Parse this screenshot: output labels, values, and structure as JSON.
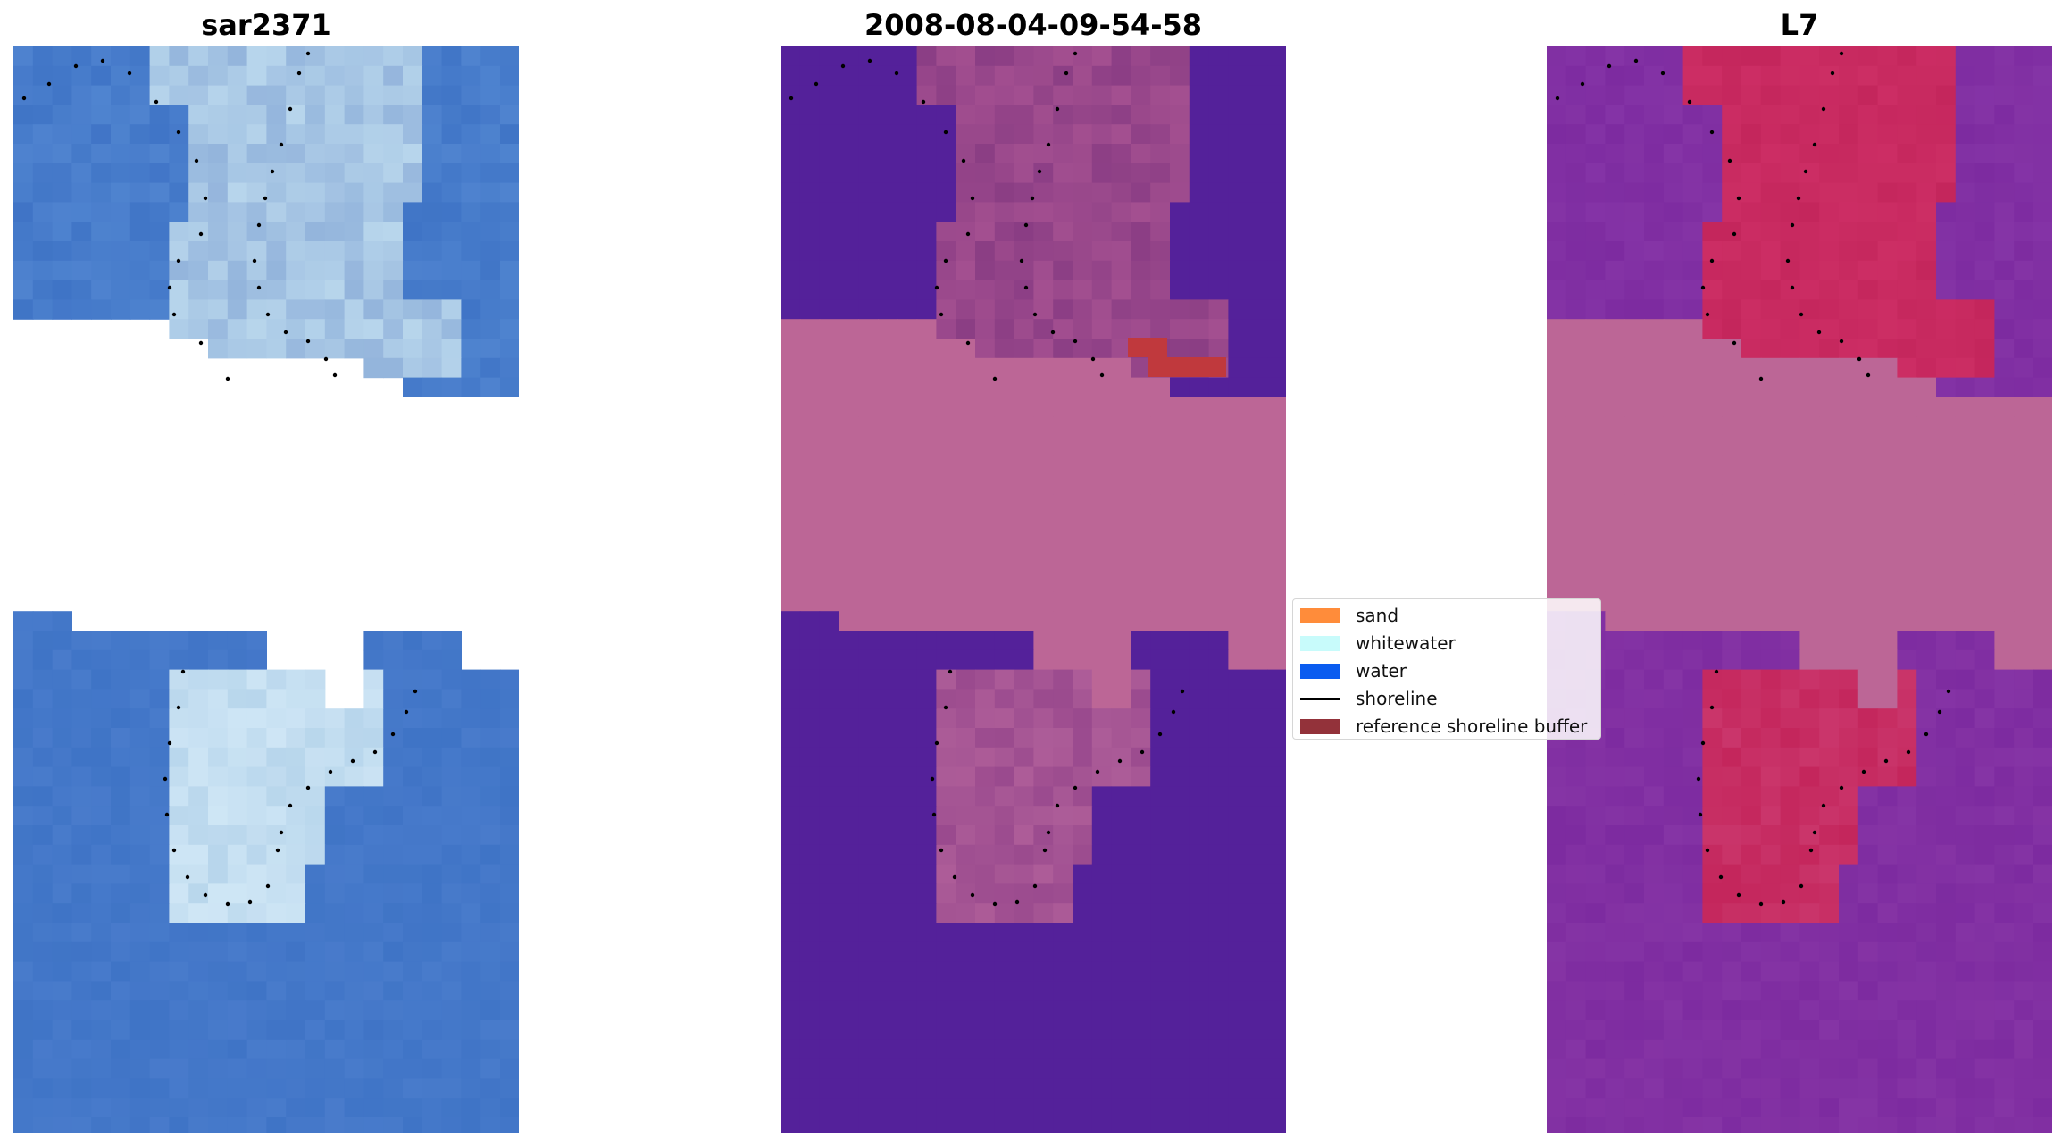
{
  "panels": [
    {
      "title": "sar2371",
      "kind": "rgb"
    },
    {
      "title": "2008-08-04-09-54-58",
      "kind": "classified"
    },
    {
      "title": "L7",
      "kind": "mndwi"
    }
  ],
  "legend": {
    "items": [
      {
        "label": "sand",
        "color": "#ff8c3a",
        "type": "patch"
      },
      {
        "label": "whitewater",
        "color": "#c8fbfb",
        "type": "patch"
      },
      {
        "label": "water",
        "color": "#0a5cf0",
        "type": "patch"
      },
      {
        "label": "shoreline",
        "color": "#000000",
        "type": "line"
      },
      {
        "label": "reference shoreline buffer",
        "color": "#93323a",
        "type": "patch"
      }
    ]
  },
  "colors": {
    "nodata": "#bc6696",
    "classified_water": "#54219a",
    "ocean_rgb": "#3f74c6",
    "surf_rgb": "#b8d6ec",
    "ocean_index": "#7d2ba0",
    "land_index": "#c4265c"
  }
}
